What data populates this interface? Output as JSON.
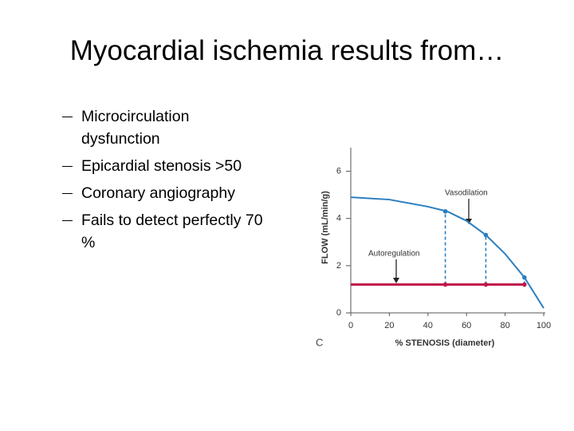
{
  "title": "Myocardial ischemia results from…",
  "bullets": [
    "Microcirculation dysfunction",
    "Epicardial stenosis >50",
    "Coronary angiography",
    "Fails to detect perfectly 70 %"
  ],
  "chart_data": {
    "type": "line",
    "xlabel": "% STENOSIS (diameter)",
    "ylabel": "FLOW (mL/min/g)",
    "panel_label": "C",
    "xlim": [
      0,
      100
    ],
    "xticks": [
      0,
      20,
      40,
      60,
      80,
      100
    ],
    "ylim": [
      0,
      7
    ],
    "yticks": [
      0,
      2,
      4,
      6
    ],
    "annotations": [
      "Vasodilation",
      "Autoregulation"
    ],
    "series": [
      {
        "color": "#2a7fc1",
        "x": [
          0,
          20,
          40,
          50,
          60,
          70,
          80,
          90,
          100
        ],
        "values": [
          4.9,
          4.8,
          4.5,
          4.3,
          3.9,
          3.3,
          2.5,
          1.5,
          0.2
        ]
      },
      {
        "color": "#c0174b",
        "x": [
          0,
          49,
          70,
          90
        ],
        "values": [
          1.2,
          1.2,
          1.2,
          1.2
        ]
      },
      {
        "color": "#2a7fc1",
        "x": [
          49,
          70,
          90
        ],
        "values": [
          4.3,
          3.3,
          1.5
        ]
      }
    ]
  }
}
